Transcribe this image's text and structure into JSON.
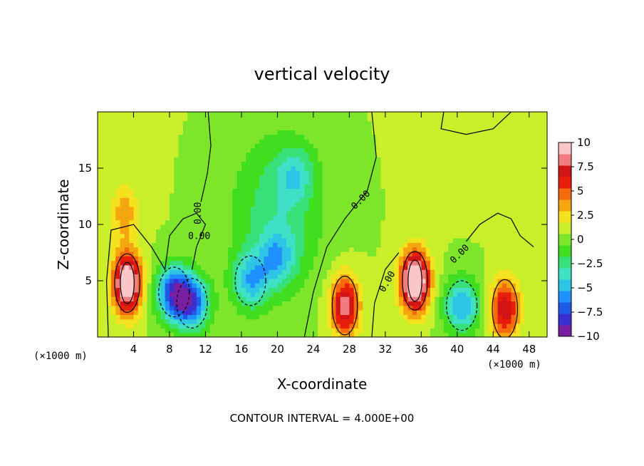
{
  "chart_data": {
    "type": "heatmap",
    "title": "vertical velocity",
    "xlabel": "X-coordinate",
    "ylabel": "Z-coordinate",
    "x_units": "(×1000 m)",
    "z_units": "(×1000 m)",
    "xlim": [
      0,
      50
    ],
    "ylim": [
      0,
      20
    ],
    "x_ticks": [
      "4",
      "8",
      "12",
      "16",
      "20",
      "24",
      "28",
      "32",
      "36",
      "40",
      "44",
      "48"
    ],
    "y_ticks": [
      "5",
      "10",
      "15"
    ],
    "x_tick_values": [
      4,
      8,
      12,
      16,
      20,
      24,
      28,
      32,
      36,
      40,
      44,
      48
    ],
    "y_tick_values": [
      5,
      10,
      15
    ],
    "colorbar": {
      "ticks": [
        "10",
        "7.5",
        "5",
        "2.5",
        "0",
        "−2.5",
        "−5",
        "−7.5",
        "−10"
      ],
      "tick_values": [
        10,
        7.5,
        5,
        2.5,
        0,
        -2.5,
        -5,
        -7.5,
        -10
      ],
      "range": [
        -10,
        10
      ],
      "colors": [
        "#7a1fa2",
        "#3a2fd0",
        "#1f5be6",
        "#1e90ff",
        "#2ec4e6",
        "#3fe0c6",
        "#38e07a",
        "#41dd1f",
        "#7ee62a",
        "#c8ef2a",
        "#f4e21e",
        "#f5a60f",
        "#f46a0c",
        "#e81e0c",
        "#d21414",
        "#f07c80",
        "#fbc6c8"
      ]
    },
    "contour_interval_label": "CONTOUR INTERVAL = 4.000E+00",
    "contour_labels": [
      "0.00",
      "0.00",
      "0.00",
      "0.00",
      "0.00"
    ],
    "features": [
      {
        "x": 3.3,
        "z": 4.8,
        "w": 11,
        "kind": "updraft"
      },
      {
        "x": 8.5,
        "z": 4.0,
        "w": -8,
        "kind": "downdraft"
      },
      {
        "x": 10.5,
        "z": 3.0,
        "w": -7,
        "kind": "downdraft"
      },
      {
        "x": 17.0,
        "z": 5.0,
        "w": -5,
        "kind": "downdraft"
      },
      {
        "x": 20.0,
        "z": 7.0,
        "w": -4,
        "kind": "downdraft"
      },
      {
        "x": 27.5,
        "z": 2.8,
        "w": 8,
        "kind": "updraft"
      },
      {
        "x": 35.3,
        "z": 5.0,
        "w": 12,
        "kind": "updraft"
      },
      {
        "x": 40.5,
        "z": 2.8,
        "w": -6,
        "kind": "downdraft"
      },
      {
        "x": 45.3,
        "z": 2.5,
        "w": 7,
        "kind": "updraft"
      },
      {
        "x": 22.0,
        "z": 14.5,
        "w": -3,
        "kind": "downdraft"
      },
      {
        "x": 3.0,
        "z": 11.0,
        "w": 3,
        "kind": "updraft"
      }
    ]
  }
}
